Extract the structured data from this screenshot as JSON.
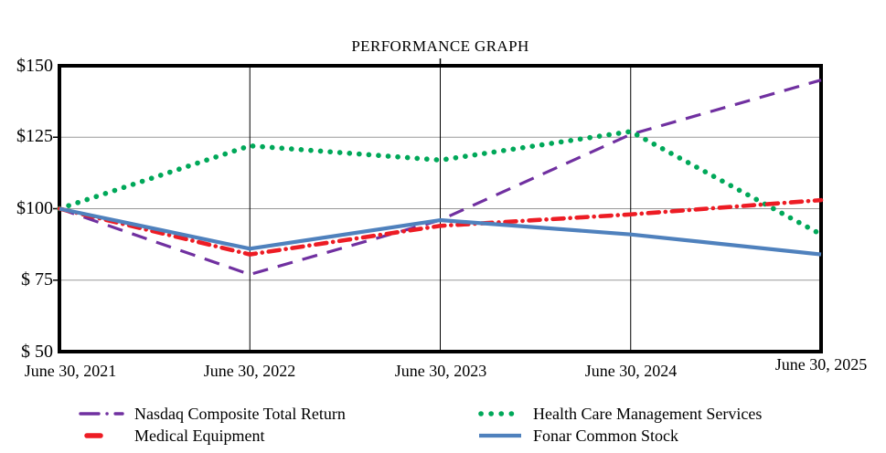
{
  "chart_data": {
    "type": "line",
    "title": "PERFORMANCE GRAPH",
    "xlabel": "",
    "ylabel": "",
    "ylim": [
      50,
      150
    ],
    "grid": true,
    "legend_position": "bottom",
    "categories": [
      "June 30, 2021",
      "June 30, 2022",
      "June 30, 2023",
      "June 30, 2024",
      "June 30, 2025"
    ],
    "ytick_labels": [
      "$150",
      "$125",
      "$100",
      "$ 75",
      "$ 50"
    ],
    "ytick_values": [
      150,
      125,
      100,
      75,
      50
    ],
    "ygrid_values": [
      125,
      100,
      75
    ],
    "series": [
      {
        "name": "Nasdaq Composite Total Return",
        "color": "#7030A0",
        "style": "dash",
        "values": [
          100,
          77,
          96,
          126,
          145
        ]
      },
      {
        "name": "Medical Equipment",
        "color": "#ED1C24",
        "style": "dashdot",
        "values": [
          100,
          84,
          94,
          98,
          103
        ]
      },
      {
        "name": "Health Care Management Services",
        "color": "#00A859",
        "style": "dot",
        "values": [
          100,
          122,
          117,
          127,
          91
        ]
      },
      {
        "name": "Fonar Common Stock",
        "color": "#4F81BD",
        "style": "solid",
        "values": [
          100,
          86,
          96,
          91,
          84
        ]
      }
    ],
    "axis_color": "#000000",
    "hgrid_color": "#999999",
    "vgrid_color": "#000000"
  }
}
